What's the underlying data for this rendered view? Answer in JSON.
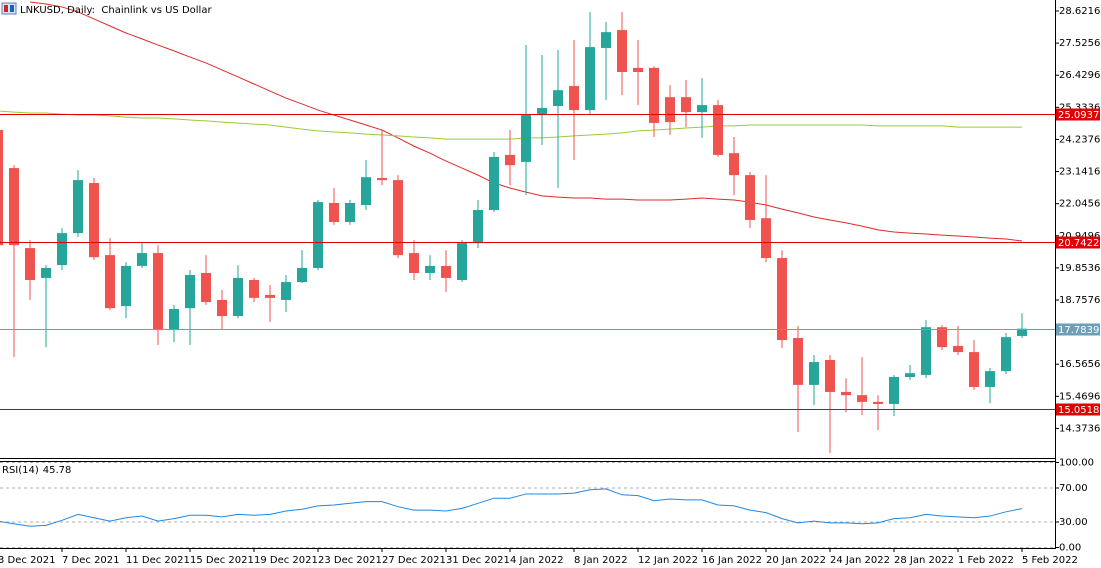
{
  "chart_data": [
    {
      "type": "candlestick",
      "title": "LNKUSD, Daily:  Chainlink vs US Dollar",
      "categories": [
        "3 Dec 2021",
        null,
        null,
        null,
        "7 Dec 2021",
        null,
        null,
        null,
        "11 Dec 2021",
        null,
        null,
        null,
        "15 Dec 2021",
        null,
        null,
        null,
        "19 Dec 2021",
        null,
        null,
        null,
        "23 Dec 2021",
        null,
        null,
        null,
        "27 Dec 2021",
        null,
        null,
        null,
        "31 Dec 2021",
        null,
        null,
        null,
        "4 Jan 2022",
        null,
        null,
        null,
        "8 Jan 2022",
        null,
        null,
        null,
        "12 Jan 2022",
        null,
        null,
        null,
        "16 Jan 2022",
        null,
        null,
        null,
        "20 Jan 2022",
        null,
        null,
        null,
        "24 Jan 2022",
        null,
        null,
        null,
        "28 Jan 2022",
        null,
        null,
        null,
        "1 Feb 2022",
        null,
        null,
        null,
        "5 Feb 2022"
      ],
      "open": [
        24.56,
        23.26,
        20.53,
        19.51,
        19.95,
        21.04,
        22.75,
        20.29,
        18.55,
        19.92,
        20.36,
        17.73,
        18.48,
        19.68,
        18.76,
        18.21,
        19.44,
        18.93,
        18.76,
        19.37,
        19.85,
        22.07,
        21.42,
        22.0,
        22.92,
        22.85,
        20.36,
        19.68,
        19.92,
        19.44,
        20.7,
        21.83,
        23.71,
        23.47,
        25.07,
        25.38,
        26.06,
        25.24,
        27.36,
        27.97,
        26.68,
        26.68,
        25.68,
        25.68,
        25.17,
        25.41,
        23.77,
        23.02,
        21.55,
        20.19,
        17.46,
        15.86,
        16.71,
        15.62,
        15.51,
        15.28,
        15.21,
        16.13,
        16.2,
        17.83,
        17.19,
        16.98,
        15.79,
        16.33,
        17.53
      ],
      "high": [
        24.9,
        23.36,
        20.8,
        19.95,
        21.21,
        23.19,
        22.92,
        20.87,
        20.05,
        20.7,
        20.63,
        18.59,
        19.78,
        20.29,
        19.1,
        19.95,
        19.51,
        19.27,
        19.61,
        20.46,
        22.17,
        22.58,
        22.17,
        23.53,
        24.56,
        23.02,
        20.8,
        20.29,
        20.46,
        20.8,
        22.17,
        23.81,
        24.56,
        27.46,
        27.12,
        27.29,
        27.63,
        28.59,
        28.25,
        28.59,
        27.63,
        26.74,
        26.09,
        26.27,
        26.33,
        25.58,
        24.32,
        23.13,
        23.02,
        20.46,
        17.87,
        16.88,
        16.88,
        16.09,
        16.81,
        15.51,
        16.2,
        16.54,
        18.07,
        17.9,
        17.87,
        17.39,
        16.44,
        17.63,
        18.31
      ],
      "low": [
        20.46,
        16.81,
        18.76,
        17.15,
        19.78,
        20.91,
        20.12,
        18.41,
        18.14,
        19.85,
        17.22,
        17.32,
        17.22,
        18.59,
        17.73,
        18.14,
        18.69,
        18.01,
        18.35,
        19.34,
        19.78,
        21.32,
        21.32,
        21.83,
        22.68,
        20.19,
        19.44,
        19.44,
        19.03,
        19.37,
        20.53,
        21.76,
        22.68,
        22.34,
        24.05,
        22.58,
        23.53,
        25.07,
        25.58,
        25.75,
        25.41,
        24.32,
        24.39,
        24.66,
        24.29,
        23.64,
        22.34,
        21.21,
        20.05,
        17.12,
        14.25,
        15.17,
        13.53,
        14.93,
        14.83,
        14.32,
        14.8,
        16.03,
        16.09,
        17.05,
        16.88,
        15.69,
        15.24,
        16.23,
        17.46
      ],
      "close": [
        20.63,
        20.63,
        19.44,
        19.85,
        21.04,
        22.85,
        20.22,
        18.48,
        19.92,
        20.36,
        17.73,
        18.45,
        19.61,
        18.69,
        18.21,
        19.51,
        18.83,
        18.83,
        19.37,
        19.85,
        22.1,
        21.42,
        22.07,
        22.95,
        22.85,
        20.29,
        19.68,
        19.92,
        19.51,
        20.7,
        21.83,
        23.64,
        23.36,
        25.07,
        25.31,
        25.92,
        25.24,
        27.39,
        27.9,
        26.54,
        26.54,
        24.8,
        24.83,
        25.17,
        25.41,
        23.71,
        23.02,
        21.49,
        20.19,
        17.39,
        15.86,
        16.64,
        15.62,
        15.51,
        15.28,
        15.21,
        16.13,
        16.26,
        17.83,
        17.15,
        16.98,
        15.79,
        16.33,
        17.49,
        17.78
      ],
      "up_color": "#26a69a",
      "down_color": "#ef5350",
      "series": [
        {
          "color": "#e02a2a",
          "values": [
            null,
            null,
            28.93,
            28.86,
            28.76,
            28.59,
            28.35,
            28.11,
            27.87,
            27.67,
            27.46,
            27.26,
            27.05,
            26.85,
            26.61,
            26.37,
            26.13,
            25.89,
            25.65,
            25.45,
            25.24,
            25.07,
            24.9,
            24.73,
            24.56,
            24.29,
            24.01,
            23.77,
            23.5,
            23.26,
            23.02,
            22.75,
            22.58,
            22.44,
            22.31,
            22.27,
            22.24,
            22.24,
            22.2,
            22.2,
            22.17,
            22.17,
            22.17,
            22.2,
            22.24,
            22.2,
            22.17,
            22.1,
            22.0,
            21.86,
            21.73,
            21.59,
            21.49,
            21.39,
            21.28,
            21.15,
            21.08,
            21.04,
            21.01,
            20.97,
            20.94,
            20.91,
            20.87,
            20.84,
            20.77
          ]
        },
        {
          "color": "#9acd32",
          "values": [
            25.21,
            25.17,
            25.14,
            25.14,
            25.1,
            25.07,
            25.07,
            25.04,
            25.0,
            24.97,
            24.97,
            24.94,
            24.9,
            24.87,
            24.83,
            24.8,
            24.76,
            24.73,
            24.66,
            24.59,
            24.53,
            24.49,
            24.46,
            24.42,
            24.39,
            24.36,
            24.32,
            24.29,
            24.25,
            24.25,
            24.25,
            24.25,
            24.25,
            24.29,
            24.29,
            24.32,
            24.36,
            24.39,
            24.42,
            24.46,
            24.53,
            24.56,
            24.59,
            24.63,
            24.66,
            24.7,
            24.7,
            24.73,
            24.73,
            24.73,
            24.73,
            24.73,
            24.73,
            24.73,
            24.73,
            24.7,
            24.7,
            24.7,
            24.7,
            24.7,
            24.66,
            24.66,
            24.66,
            24.66,
            24.66
          ]
        }
      ],
      "levels": [
        {
          "value": 25.0937,
          "label": "25.09370",
          "color": "#e00000"
        },
        {
          "value": 20.74224,
          "label": "20.74224",
          "color": "#e00000"
        },
        {
          "value": 17.78391,
          "label": "17.78391",
          "color": "#6f9fb8"
        },
        {
          "value": 15.05187,
          "label": "15.05187",
          "color": "#e00000"
        }
      ],
      "ylim": [
        13.365,
        28.997
      ],
      "yticks": [
        {
          "value": 28.6216,
          "label": "28.62160"
        },
        {
          "value": 27.5256,
          "label": "27.52560"
        },
        {
          "value": 26.4296,
          "label": "26.42960"
        },
        {
          "value": 25.3336,
          "label": "25.33360"
        },
        {
          "value": 24.2376,
          "label": "24.23760"
        },
        {
          "value": 23.1416,
          "label": "23.14160"
        },
        {
          "value": 22.0456,
          "label": "22.04560"
        },
        {
          "value": 20.9496,
          "label": "20.94960"
        },
        {
          "value": 19.8536,
          "label": "19.85360"
        },
        {
          "value": 18.7576,
          "label": "18.75760"
        },
        {
          "value": 17.6616,
          "label": "17.66160"
        },
        {
          "value": 16.5656,
          "label": "16.56560"
        },
        {
          "value": 15.4696,
          "label": "15.46960"
        },
        {
          "value": 14.3736,
          "label": "14.37360"
        }
      ]
    },
    {
      "type": "line",
      "title": "RSI(14)",
      "color": "#1e88e5",
      "values": [
        31,
        28,
        25,
        26,
        32,
        39,
        35,
        31,
        35,
        37,
        31,
        34,
        38,
        38,
        36,
        39,
        38,
        39,
        43,
        45,
        49,
        50,
        52,
        54,
        54,
        48,
        44,
        44,
        43,
        46,
        52,
        58,
        58,
        63,
        63,
        63,
        64,
        68,
        69,
        62,
        61,
        55,
        57,
        56,
        56,
        50,
        49,
        44,
        41,
        34,
        29,
        31,
        29,
        29,
        28,
        29,
        34,
        35,
        39,
        37,
        36,
        35,
        37,
        42,
        45.78
      ],
      "ylim": [
        0,
        100
      ],
      "yticks": [
        {
          "value": 100,
          "label": "100.00"
        },
        {
          "value": 70,
          "label": "70.00"
        },
        {
          "value": 30,
          "label": "30.00"
        },
        {
          "value": 0,
          "label": "0.00"
        }
      ],
      "grid": true
    }
  ]
}
